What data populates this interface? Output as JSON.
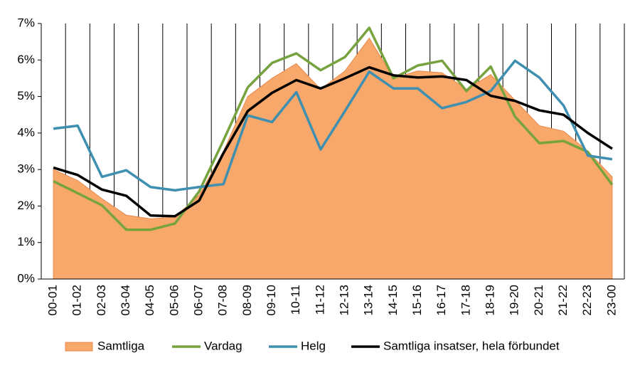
{
  "chart_data": {
    "type": "line",
    "categories": [
      "00-01",
      "01-02",
      "02-03",
      "03-04",
      "04-05",
      "05-06",
      "06-07",
      "07-08",
      "08-09",
      "09-10",
      "10-11",
      "11-12",
      "12-13",
      "13-14",
      "14-15",
      "15-16",
      "16-17",
      "17-18",
      "18-19",
      "19-20",
      "20-21",
      "21-22",
      "22-23",
      "23-00"
    ],
    "series": [
      {
        "name": "Samtliga",
        "style": "area",
        "color": "#f7a86a",
        "values": [
          3.0,
          2.7,
          2.2,
          1.75,
          1.65,
          1.7,
          2.3,
          3.5,
          5.0,
          5.5,
          5.9,
          5.2,
          5.7,
          6.6,
          5.5,
          5.7,
          5.65,
          5.2,
          5.6,
          4.9,
          4.2,
          4.05,
          3.5,
          2.8
        ]
      },
      {
        "name": "Vardag",
        "style": "line",
        "color": "#77a33f",
        "values": [
          2.68,
          2.35,
          2.02,
          1.35,
          1.35,
          1.52,
          2.4,
          3.8,
          5.25,
          5.92,
          6.18,
          5.72,
          6.08,
          6.88,
          5.5,
          5.85,
          5.98,
          5.15,
          5.82,
          4.45,
          3.72,
          3.78,
          3.48,
          2.58
        ]
      },
      {
        "name": "Helg",
        "style": "line",
        "color": "#3e8fb0",
        "values": [
          4.12,
          4.2,
          2.8,
          2.98,
          2.52,
          2.43,
          2.52,
          2.6,
          4.48,
          4.3,
          5.12,
          3.55,
          4.6,
          5.68,
          5.22,
          5.22,
          4.68,
          4.85,
          5.15,
          5.98,
          5.52,
          4.75,
          3.38,
          3.28
        ]
      },
      {
        "name": "Samtliga insatser, hela förbundet",
        "style": "line",
        "color": "#000000",
        "values": [
          3.05,
          2.85,
          2.45,
          2.28,
          1.74,
          1.72,
          2.15,
          3.45,
          4.6,
          5.1,
          5.45,
          5.22,
          5.5,
          5.8,
          5.58,
          5.52,
          5.55,
          5.45,
          5.02,
          4.88,
          4.62,
          4.5,
          4.0,
          3.57
        ]
      }
    ],
    "ylim": [
      0,
      7
    ],
    "yticks": [
      {
        "value": 0,
        "label": "0%"
      },
      {
        "value": 1,
        "label": "1%"
      },
      {
        "value": 2,
        "label": "2%"
      },
      {
        "value": 3,
        "label": "3%"
      },
      {
        "value": 4,
        "label": "4%"
      },
      {
        "value": 5,
        "label": "5%"
      },
      {
        "value": 6,
        "label": "6%"
      },
      {
        "value": 7,
        "label": "7%"
      }
    ],
    "legend": "bottom"
  }
}
